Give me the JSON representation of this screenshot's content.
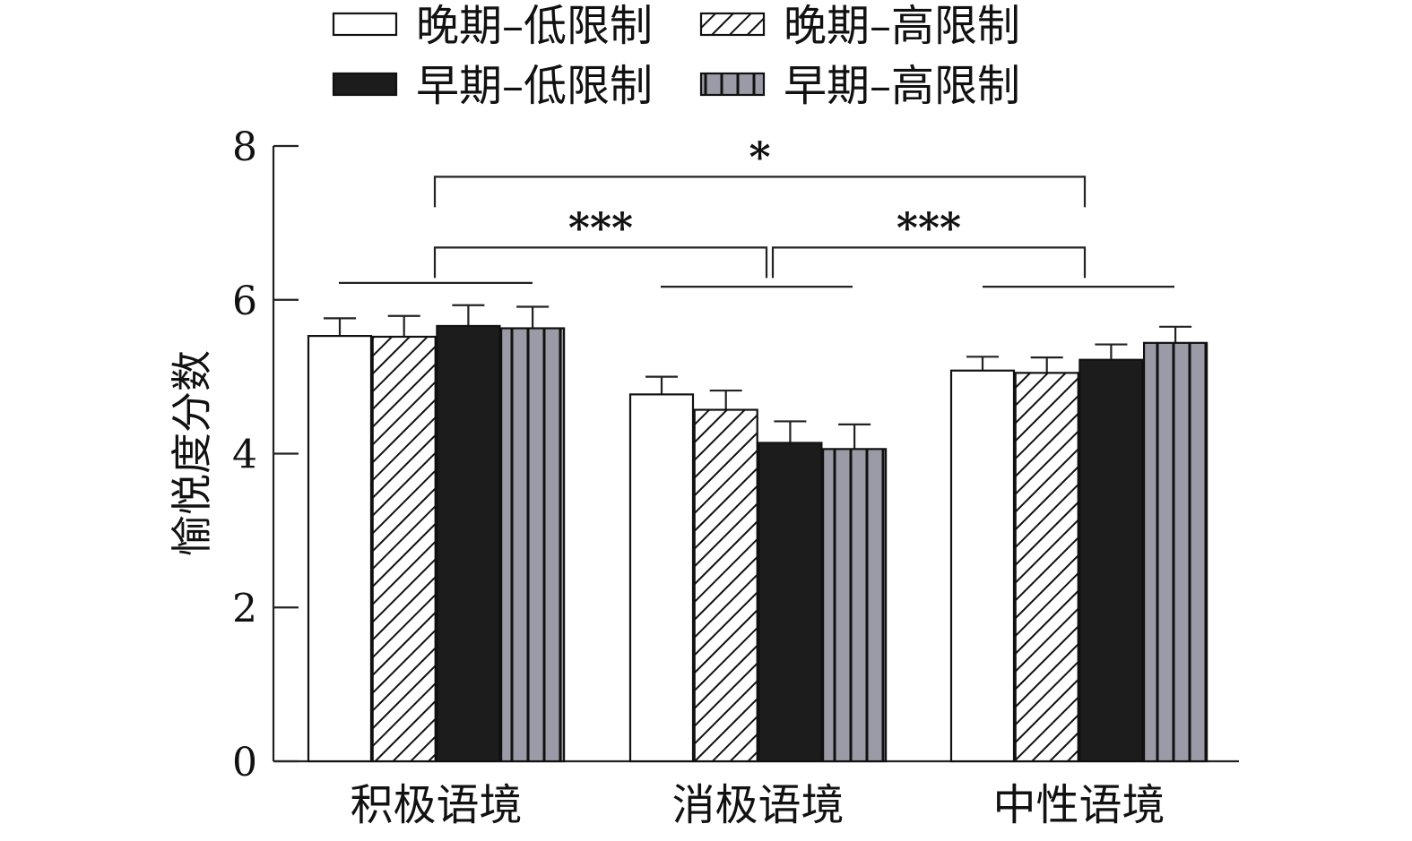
{
  "chart_data": {
    "type": "bar",
    "title": "",
    "xlabel": "",
    "ylabel": "愉悦度分数",
    "ylim": [
      0,
      8
    ],
    "yticks": [
      0,
      2,
      4,
      6,
      8
    ],
    "grid": false,
    "legend_position": "top",
    "categories": [
      "积极语境",
      "消极语境",
      "中性语境"
    ],
    "series": [
      {
        "name": "晚期–低限制",
        "pattern": "white",
        "color": "#ffffff",
        "values": [
          5.53,
          4.77,
          5.08
        ],
        "errors": [
          0.23,
          0.23,
          0.18
        ]
      },
      {
        "name": "晚期–高限制",
        "pattern": "hatch",
        "color": "#ffffff",
        "values": [
          5.52,
          4.57,
          5.05
        ],
        "errors": [
          0.27,
          0.25,
          0.2
        ]
      },
      {
        "name": "早期–低限制",
        "pattern": "black",
        "color": "#1c1c1c",
        "values": [
          5.66,
          4.14,
          5.22
        ],
        "errors": [
          0.27,
          0.28,
          0.2
        ]
      },
      {
        "name": "早期–高限制",
        "pattern": "gray-stripes",
        "color": "#9a9ba6",
        "values": [
          5.63,
          4.06,
          5.44
        ],
        "errors": [
          0.28,
          0.32,
          0.21
        ]
      }
    ],
    "group_lines": [
      {
        "category_index": 0,
        "y": 6.22
      },
      {
        "category_index": 1,
        "y": 6.17
      },
      {
        "category_index": 2,
        "y": 6.17
      }
    ],
    "significance": [
      {
        "from": 0,
        "to": 2,
        "y": 7.6,
        "label": "*"
      },
      {
        "from": 0,
        "to": 1,
        "y": 6.68,
        "label": "***"
      },
      {
        "from": 1,
        "to": 2,
        "y": 6.68,
        "label": "***"
      }
    ]
  }
}
